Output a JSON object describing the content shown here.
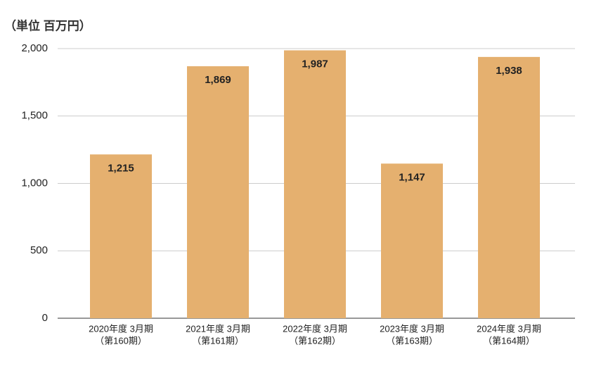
{
  "chart_data": {
    "type": "bar",
    "title": "（単位 百万円）",
    "categories": [
      [
        "2020年度 3月期",
        "（第160期）"
      ],
      [
        "2021年度 3月期",
        "（第161期）"
      ],
      [
        "2022年度 3月期",
        "（第162期）"
      ],
      [
        "2023年度 3月期",
        "（第163期）"
      ],
      [
        "2024年度 3月期",
        "（第164期）"
      ]
    ],
    "values": [
      1215,
      1869,
      1987,
      1147,
      1938
    ],
    "value_labels": [
      "1,215",
      "1,869",
      "1,987",
      "1,147",
      "1,938"
    ],
    "color": "#e5b06f",
    "ylim": [
      0,
      2000
    ],
    "yticks": [
      0,
      500,
      {
        "value": 1000,
        "label": "1,000"
      },
      {
        "value": 1500,
        "label": "1,500"
      },
      {
        "value": 2000,
        "label": "2,000"
      }
    ],
    "grid": true
  }
}
